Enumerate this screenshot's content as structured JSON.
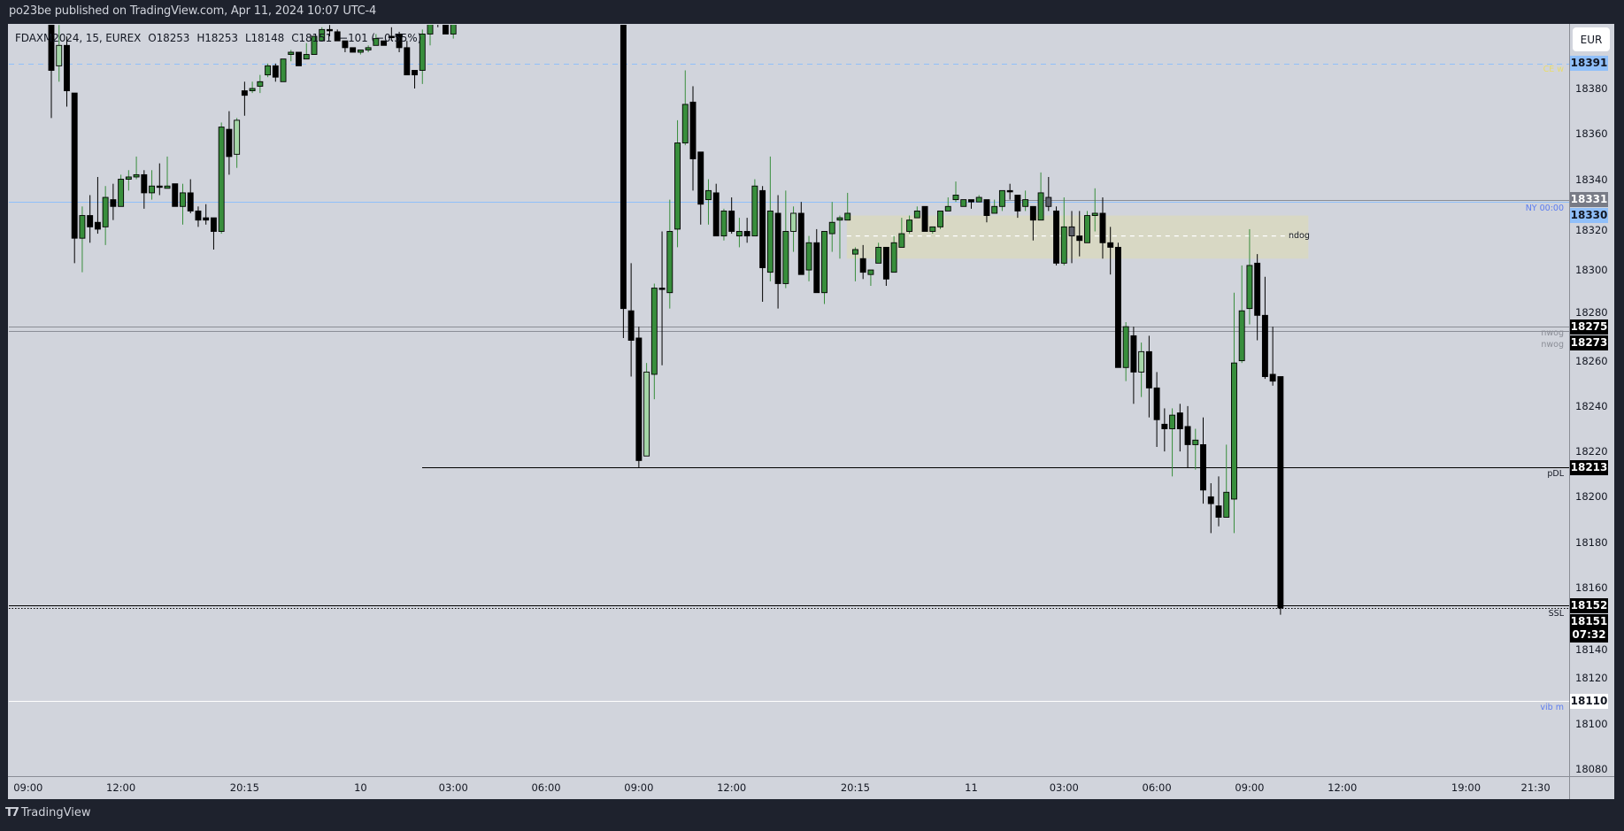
{
  "header": {
    "title": "po23be published on TradingView.com, Apr 11, 2024 10:07 UTC-4"
  },
  "legend": {
    "symbol": "FDAXM2024, 15, EUREX",
    "open": "O18253",
    "high": "H18253",
    "low": "L18148",
    "close": "C18151",
    "change": "−101 (−0.55%)"
  },
  "currency_button": "EUR",
  "footer": {
    "brand": "TradingView"
  },
  "colors": {
    "background": "#d1d4dc",
    "up": "#388e3c",
    "up_light": "#a5d6a7",
    "neutral": "#5d606b",
    "down": "#000000",
    "zone": "#d8d8c4"
  },
  "chart_data": {
    "type": "candlestick",
    "interval": "15",
    "x_tick_labels": [
      "09:00",
      "12:00",
      "20:15",
      "10",
      "03:00",
      "06:00",
      "09:00",
      "12:00",
      "20:15",
      "11",
      "03:00",
      "06:00",
      "09:00",
      "12:00",
      "19:00",
      "21:30"
    ],
    "y_ticks": [
      18380,
      18360,
      18340,
      18320,
      18300,
      18280,
      18260,
      18240,
      18220,
      18200,
      18180,
      18160,
      18140,
      18120,
      18100,
      18080
    ],
    "ylim": [
      18076,
      18411
    ],
    "grid": false,
    "candles_ohlc": [
      [
        18425,
        18430,
        18367,
        18388
      ],
      [
        18390,
        18408,
        18383,
        18399,
        "light"
      ],
      [
        18399,
        18403,
        18372,
        18379
      ],
      [
        18378,
        18378,
        18303,
        18314
      ],
      [
        18314,
        18328,
        18299,
        18324
      ],
      [
        18324,
        18333,
        18312,
        18319
      ],
      [
        18321,
        18341,
        18316,
        18318
      ],
      [
        18319,
        18337,
        18311,
        18332
      ],
      [
        18331,
        18338,
        18322,
        18328
      ],
      [
        18328,
        18342,
        18328,
        18340
      ],
      [
        18340,
        18344,
        18335,
        18341
      ],
      [
        18341,
        18350,
        18340,
        18342
      ],
      [
        18342,
        18344,
        18327,
        18334
      ],
      [
        18334,
        18344,
        18331,
        18337
      ],
      [
        18337,
        18347,
        18333,
        18337
      ],
      [
        18336,
        18350,
        18336,
        18337
      ],
      [
        18338,
        18338,
        18328,
        18328
      ],
      [
        18328,
        18338,
        18320,
        18334
      ],
      [
        18334,
        18340,
        18325,
        18326
      ],
      [
        18326,
        18328,
        18319,
        18322
      ],
      [
        18323,
        18329,
        18320,
        18322
      ],
      [
        18323,
        18323,
        18309,
        18317
      ],
      [
        18317,
        18365,
        18316,
        18363
      ],
      [
        18362,
        18370,
        18342,
        18350
      ],
      [
        18351,
        18367,
        18345,
        18366,
        "light"
      ],
      [
        18379,
        18383,
        18368,
        18377
      ],
      [
        18379,
        18383,
        18378,
        18380
      ],
      [
        18381,
        18386,
        18378,
        18383
      ],
      [
        18386,
        18391,
        18385,
        18390
      ],
      [
        18390,
        18391,
        18383,
        18385
      ],
      [
        18383,
        18393,
        18383,
        18393
      ],
      [
        18395,
        18397,
        18392,
        18396
      ],
      [
        18396,
        18396,
        18390,
        18390
      ],
      [
        18393,
        18400,
        18393,
        18395
      ],
      [
        18395,
        18403,
        18395,
        18403
      ],
      [
        18401,
        18407,
        18401,
        18406
      ],
      [
        18406,
        18408,
        18403,
        18406
      ],
      [
        18405,
        18406,
        18401,
        18401
      ],
      [
        18401,
        18401,
        18396,
        18398
      ],
      [
        18398,
        18398,
        18396,
        18396
      ],
      [
        18396,
        18397,
        18395,
        18397
      ],
      [
        18397,
        18399,
        18396,
        18398
      ],
      [
        18399,
        18404,
        18399,
        18402
      ],
      [
        18401,
        18401,
        18399,
        18399
      ],
      [
        18403,
        18407,
        18401,
        18403
      ],
      [
        18404,
        18405,
        18396,
        18398
      ],
      [
        18398,
        18401,
        18386,
        18386
      ],
      [
        18388,
        18388,
        18380,
        18386
      ],
      [
        18388,
        18406,
        18382,
        18404
      ],
      [
        18404,
        18414,
        18399,
        18412
      ],
      [
        18420,
        18424,
        18407,
        18412
      ],
      [
        18418,
        18418,
        18404,
        18404
      ],
      [
        18404,
        18420,
        18402,
        18415
      ],
      null,
      null,
      null,
      null,
      null,
      null,
      null,
      null,
      null,
      null,
      null,
      null,
      null,
      null,
      null,
      null,
      null,
      null,
      null,
      null,
      null,
      [
        18440,
        18445,
        18270,
        18283
      ],
      [
        18282,
        18303,
        18253,
        18269
      ],
      [
        18270,
        18275,
        18213,
        18216
      ],
      [
        18218,
        18259,
        18218,
        18255,
        "light"
      ],
      [
        18254,
        18294,
        18243,
        18292
      ],
      [
        18292,
        18317,
        18258,
        18292
      ],
      [
        18290,
        18331,
        18283,
        18317
      ],
      [
        18318,
        18366,
        18310,
        18356
      ],
      [
        18356,
        18388,
        18355,
        18373
      ],
      [
        18374,
        18381,
        18335,
        18349
      ],
      [
        18352,
        18352,
        18320,
        18329
      ],
      [
        18331,
        18340,
        18320,
        18335
      ],
      [
        18334,
        18338,
        18315,
        18315
      ],
      [
        18315,
        18327,
        18313,
        18326
      ],
      [
        18326,
        18332,
        18316,
        18317
      ],
      [
        18315,
        18323,
        18310,
        18317
      ],
      [
        18317,
        18323,
        18312,
        18315
      ],
      [
        18315,
        18340,
        18315,
        18337
      ],
      [
        18335,
        18337,
        18286,
        18301
      ],
      [
        18299,
        18350,
        18295,
        18326
      ],
      [
        18325,
        18333,
        18283,
        18294
      ],
      [
        18294,
        18335,
        18292,
        18317
      ],
      [
        18317,
        18328,
        18308,
        18325,
        "light"
      ],
      [
        18325,
        18330,
        18298,
        18298
      ],
      [
        18300,
        18315,
        18295,
        18312
      ],
      [
        18312,
        18318,
        18290,
        18290
      ],
      [
        18290,
        18317,
        18285,
        18317
      ],
      [
        18316,
        18330,
        18308,
        18321
      ],
      [
        18322,
        18324,
        18305,
        18323
      ],
      [
        18322,
        18334,
        18322,
        18325
      ],
      [
        18307,
        18310,
        18295,
        18309
      ],
      [
        18305,
        18311,
        18296,
        18299
      ],
      [
        18298,
        18300,
        18293,
        18300
      ],
      [
        18303,
        18312,
        18303,
        18310
      ],
      [
        18310,
        18310,
        18293,
        18296
      ],
      [
        18299,
        18315,
        18299,
        18312
      ],
      [
        18310,
        18323,
        18310,
        18316
      ],
      [
        18317,
        18324,
        18316,
        18322
      ],
      [
        18323,
        18328,
        18323,
        18326
      ],
      [
        18328,
        18328,
        18317,
        18317
      ],
      [
        18317,
        18319,
        18316,
        18319
      ],
      [
        18319,
        18326,
        18318,
        18326
      ],
      [
        18326,
        18332,
        18326,
        18328
      ],
      [
        18331,
        18339,
        18330,
        18333
      ],
      [
        18328,
        18331,
        18328,
        18331
      ],
      [
        18331,
        18331,
        18327,
        18330
      ],
      [
        18330,
        18333,
        18330,
        18332
      ],
      [
        18331,
        18331,
        18321,
        18324
      ],
      [
        18325,
        18331,
        18325,
        18328
      ],
      [
        18328,
        18335,
        18326,
        18335
      ],
      [
        18335,
        18338,
        18331,
        18335
      ],
      [
        18333,
        18333,
        18323,
        18326
      ],
      [
        18328,
        18335,
        18326,
        18331
      ],
      [
        18328,
        18328,
        18313,
        18322
      ],
      [
        18322,
        18343,
        18322,
        18334
      ],
      [
        18332,
        18341,
        18326,
        18328,
        "gray"
      ],
      [
        18326,
        18328,
        18302,
        18303
      ],
      [
        18303,
        18332,
        18302,
        18319
      ],
      [
        18319,
        18326,
        18303,
        18315,
        "gray"
      ],
      [
        18315,
        18326,
        18306,
        18313
      ],
      [
        18312,
        18326,
        18312,
        18324
      ],
      [
        18324,
        18336,
        18317,
        18325
      ],
      [
        18325,
        18332,
        18305,
        18312
      ],
      [
        18312,
        18319,
        18298,
        18310
      ],
      [
        18310,
        18312,
        18257,
        18257
      ],
      [
        18257,
        18277,
        18251,
        18275
      ],
      [
        18271,
        18275,
        18241,
        18255
      ],
      [
        18255,
        18268,
        18244,
        18264,
        "light"
      ],
      [
        18264,
        18271,
        18235,
        18248
      ],
      [
        18248,
        18255,
        18222,
        18234
      ],
      [
        18232,
        18239,
        18220,
        18230
      ],
      [
        18230,
        18239,
        18209,
        18236
      ],
      [
        18237,
        18241,
        18220,
        18230
      ],
      [
        18231,
        18240,
        18213,
        18223
      ],
      [
        18223,
        18230,
        18212,
        18225
      ],
      [
        18223,
        18235,
        18197,
        18203
      ],
      [
        18200,
        18206,
        18184,
        18197
      ],
      [
        18196,
        18209,
        18187,
        18191
      ],
      [
        18191,
        18223,
        18191,
        18202
      ],
      [
        18199,
        18290,
        18184,
        18259
      ],
      [
        18260,
        18302,
        18259,
        18282
      ],
      [
        18283,
        18318,
        18276,
        18302
      ],
      [
        18303,
        18307,
        18269,
        18280
      ],
      [
        18280,
        18297,
        18252,
        18253
      ],
      [
        18254,
        18275,
        18249,
        18251
      ],
      [
        18253,
        18253,
        18148,
        18151
      ]
    ],
    "zone": {
      "label": "ndog",
      "high": 18324,
      "low": 18305,
      "mid": 18315
    },
    "levels": [
      {
        "price": 18391,
        "label": "CE w",
        "line_color": "#90bff9",
        "label_color": "#e9dc6a",
        "style": "dashed"
      },
      {
        "price": 18331,
        "label": "",
        "line_color": "#8a8d96",
        "label_color": "#8a8d96",
        "style": "solid"
      },
      {
        "price": 18330,
        "label": "NY 00:00",
        "line_color": "#90bff9",
        "label_color": "#5b7cf0",
        "style": "solid"
      },
      {
        "price": 18275,
        "label": "nwog",
        "line_color": "#8a8d96",
        "label_color": "#8a8d96",
        "style": "solid"
      },
      {
        "price": 18273,
        "label": "nwog",
        "line_color": "#8a8d96",
        "label_color": "#8a8d96",
        "style": "solid"
      },
      {
        "price": 18213,
        "label": "pDL",
        "line_color": "#000000",
        "label_color": "#131722",
        "style": "solid"
      },
      {
        "price": 18152,
        "label": "",
        "line_color": "#000000",
        "label_color": "#131722",
        "style": "solid"
      },
      {
        "price": 18151,
        "label": "SSL",
        "line_color": "#000000",
        "label_color": "#131722",
        "style": "dotted"
      },
      {
        "price": 18110,
        "label": "vib m",
        "line_color": "#ffffff",
        "label_color": "#5b7cf0",
        "style": "solid"
      }
    ],
    "price_badges": [
      {
        "price": 18391,
        "text": "18391",
        "bg": "#90bff9",
        "fg": "#131722"
      },
      {
        "price": 18331,
        "text": "18331",
        "bg": "#787b86",
        "fg": "#ffffff"
      },
      {
        "price": 18330,
        "text": "18330",
        "bg": "#90bff9",
        "fg": "#131722"
      },
      {
        "price": 18275,
        "text": "18275",
        "bg": "#000000",
        "fg": "#ffffff"
      },
      {
        "price": 18273,
        "text": "18273",
        "bg": "#000000",
        "fg": "#ffffff"
      },
      {
        "price": 18213,
        "text": "18213",
        "bg": "#000000",
        "fg": "#ffffff"
      },
      {
        "price": 18152,
        "text": "18152",
        "bg": "#000000",
        "fg": "#ffffff"
      },
      {
        "price": 18151,
        "text": "18151",
        "sub": "07:32",
        "bg": "#000000",
        "fg": "#ffffff"
      },
      {
        "price": 18110,
        "text": "18110",
        "bg": "#ffffff",
        "fg": "#131722"
      }
    ]
  }
}
